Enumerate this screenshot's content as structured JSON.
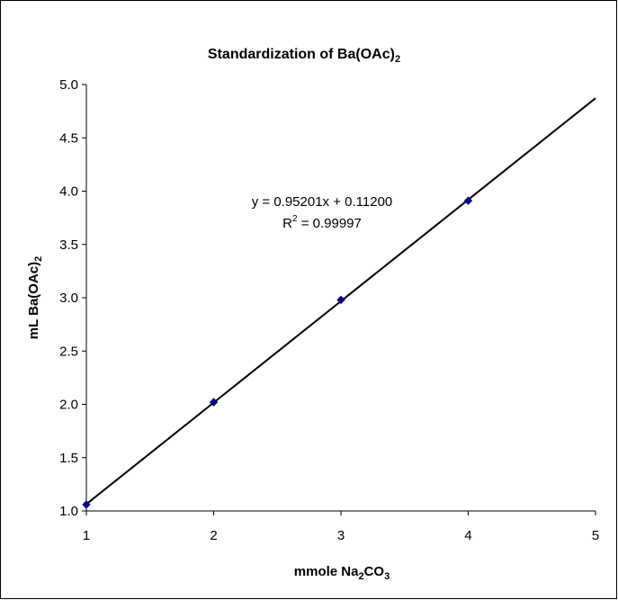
{
  "chart_data": {
    "type": "scatter",
    "title_main": "Standardization of Ba(OAc)",
    "title_sub": "2",
    "xlabel_main": "mmole Na",
    "xlabel_sub1": "2",
    "xlabel_mid": "CO",
    "xlabel_sub2": "3",
    "ylabel_main": "mL Ba(OAc)",
    "ylabel_sub": "2",
    "xlim": [
      1,
      5
    ],
    "ylim": [
      1.0,
      5.0
    ],
    "x_ticks": [
      "1",
      "2",
      "3",
      "4",
      "5"
    ],
    "y_ticks": [
      "1.0",
      "1.5",
      "2.0",
      "2.5",
      "3.0",
      "3.5",
      "4.0",
      "4.5",
      "5.0"
    ],
    "grid": false,
    "legend": "none",
    "series": [
      {
        "x": [
          1,
          2,
          3,
          4
        ],
        "y": [
          1.06,
          2.02,
          2.98,
          3.91
        ],
        "marker": "diamond",
        "color": "#000080"
      }
    ],
    "trendline": {
      "slope": 0.95201,
      "intercept": 0.112,
      "x_range": [
        1,
        5
      ],
      "color": "#000000"
    },
    "equation_text": "y = 0.95201x + 0.11200",
    "r2_prefix": "R",
    "r2_sup": "2",
    "r2_value": " = 0.99997"
  }
}
